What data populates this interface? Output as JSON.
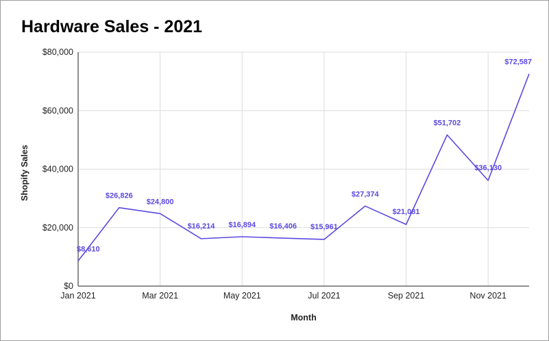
{
  "chart_data": {
    "type": "line",
    "title": "Hardware Sales - 2021",
    "xlabel": "Month",
    "ylabel": "Shopify Sales",
    "x": [
      "2021-01",
      "2021-02",
      "2021-03",
      "2021-04",
      "2021-05",
      "2021-06",
      "2021-07",
      "2021-08",
      "2021-09",
      "2021-10",
      "2021-11",
      "2021-12"
    ],
    "x_ticks": [
      "Jan 2021",
      "Mar 2021",
      "May 2021",
      "Jul 2021",
      "Sep 2021",
      "Nov 2021"
    ],
    "y_ticks": [
      "$0",
      "$20,000",
      "$40,000",
      "$60,000",
      "$80,000"
    ],
    "ylim": [
      0,
      80000
    ],
    "series": [
      {
        "values": [
          8610,
          26826,
          24800,
          16214,
          16894,
          16406,
          15961,
          27374,
          21081,
          51702,
          36130,
          72587
        ],
        "labels": [
          "$8,610",
          "$26,826",
          "$24,800",
          "$16,214",
          "$16,894",
          "$16,406",
          "$15,961",
          "$27,374",
          "$21,081",
          "$51,702",
          "$36,130",
          "$72,587"
        ],
        "color": "#5b49e0"
      }
    ],
    "grid": true,
    "legend": "none"
  }
}
